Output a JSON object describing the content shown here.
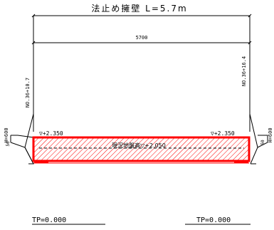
{
  "drawing": {
    "title": "法止め擁壁  L=5.7m",
    "total_length_dim": "5700",
    "station_left": "NO.36+10.7",
    "station_right": "NO.36+16.4",
    "height_left": "H=600",
    "height_right": "H=600",
    "dim_left_small": "50",
    "dim_right_small": "50",
    "level_left": "▽+2.350",
    "level_right": "▽+2.350",
    "ground_level_label": "現況地盤高▽+2.050",
    "datum_left": "TP=0.000",
    "datum_right": "TP=0.000"
  },
  "colors": {
    "wall_outline": "#ff0000",
    "hatch": "#ff0000",
    "linework": "#000000"
  }
}
